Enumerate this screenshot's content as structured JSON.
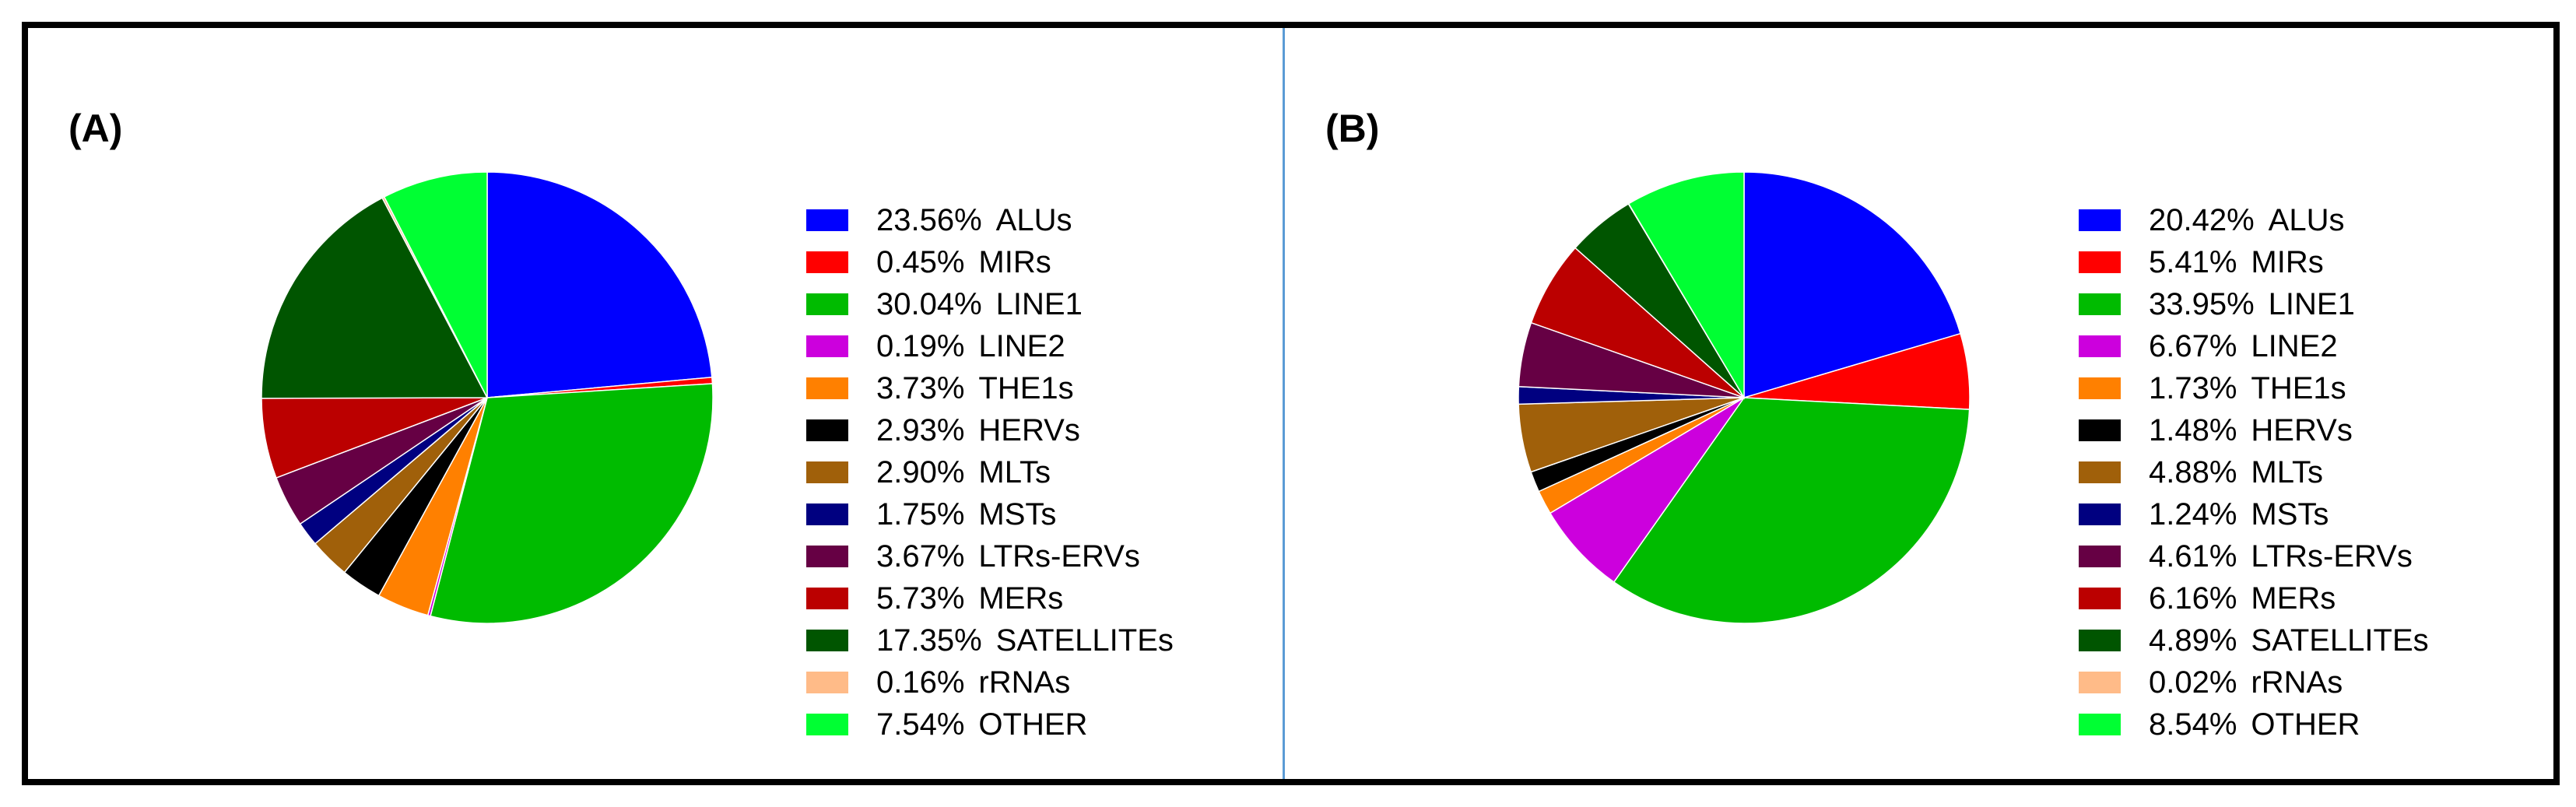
{
  "chart_data": [
    {
      "type": "pie",
      "panel_label": "(A)",
      "categories": [
        "ALUs",
        "MIRs",
        "LINE1",
        "LINE2",
        "THE1s",
        "HERVs",
        "MLTs",
        "MSTs",
        "LTRs-ERVs",
        "MERs",
        "SATELLITEs",
        "rRNAs",
        "OTHER"
      ],
      "values": [
        23.56,
        0.45,
        30.04,
        0.19,
        3.73,
        2.93,
        2.9,
        1.75,
        3.67,
        5.73,
        17.35,
        0.16,
        7.54
      ],
      "value_labels": [
        "23.56%",
        "0.45%",
        "30.04%",
        "0.19%",
        "3.73%",
        "2.93%",
        "2.90%",
        "1.75%",
        "3.67%",
        "5.73%",
        "17.35%",
        "0.16%",
        "7.54%"
      ],
      "colors": [
        "#0000ff",
        "#ff0000",
        "#00bb00",
        "#cc00dd",
        "#ff8000",
        "#000000",
        "#a0600a",
        "#000080",
        "#660044",
        "#bb0000",
        "#005500",
        "#ffbb88",
        "#00ff33"
      ],
      "legend_position": "right",
      "start_angle": "12 o'clock",
      "direction": "clockwise"
    },
    {
      "type": "pie",
      "panel_label": "(B)",
      "categories": [
        "ALUs",
        "MIRs",
        "LINE1",
        "LINE2",
        "THE1s",
        "HERVs",
        "MLTs",
        "MSTs",
        "LTRs-ERVs",
        "MERs",
        "SATELLITEs",
        "rRNAs",
        "OTHER"
      ],
      "values": [
        20.42,
        5.41,
        33.95,
        6.67,
        1.73,
        1.48,
        4.88,
        1.24,
        4.61,
        6.16,
        4.89,
        0.02,
        8.54
      ],
      "value_labels": [
        "20.42%",
        "5.41%",
        "33.95%",
        "6.67%",
        "1.73%",
        "1.48%",
        "4.88%",
        "1.24%",
        "4.61%",
        "6.16%",
        "4.89%",
        "0.02%",
        "8.54%"
      ],
      "colors": [
        "#0000ff",
        "#ff0000",
        "#00bb00",
        "#cc00dd",
        "#ff8000",
        "#000000",
        "#a0600a",
        "#000080",
        "#660044",
        "#bb0000",
        "#005500",
        "#ffbb88",
        "#00ff33"
      ],
      "legend_position": "right",
      "start_angle": "12 o'clock",
      "direction": "clockwise"
    }
  ]
}
